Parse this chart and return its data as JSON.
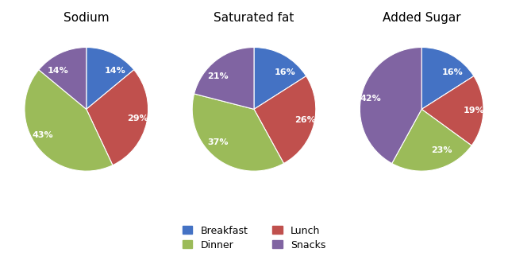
{
  "charts": [
    {
      "title": "Sodium",
      "values": [
        14,
        29,
        43,
        14
      ],
      "labels": [
        "14%",
        "29%",
        "43%",
        "14%"
      ],
      "startangle": 90
    },
    {
      "title": "Saturated fat",
      "values": [
        16,
        26,
        37,
        21
      ],
      "labels": [
        "16%",
        "26%",
        "37%",
        "21%"
      ],
      "startangle": 90
    },
    {
      "title": "Added Sugar",
      "values": [
        16,
        19,
        23,
        42
      ],
      "labels": [
        "16%",
        "19%",
        "23%",
        "42%"
      ],
      "startangle": 90
    }
  ],
  "colors": [
    "#4472C4",
    "#C0504D",
    "#9BBB59",
    "#8064A2"
  ],
  "legend_labels": [
    "Breakfast",
    "Lunch",
    "Dinner",
    "Snacks"
  ],
  "text_color": "white",
  "fontsize_title": 11,
  "fontsize_label": 8,
  "fontsize_legend": 9
}
